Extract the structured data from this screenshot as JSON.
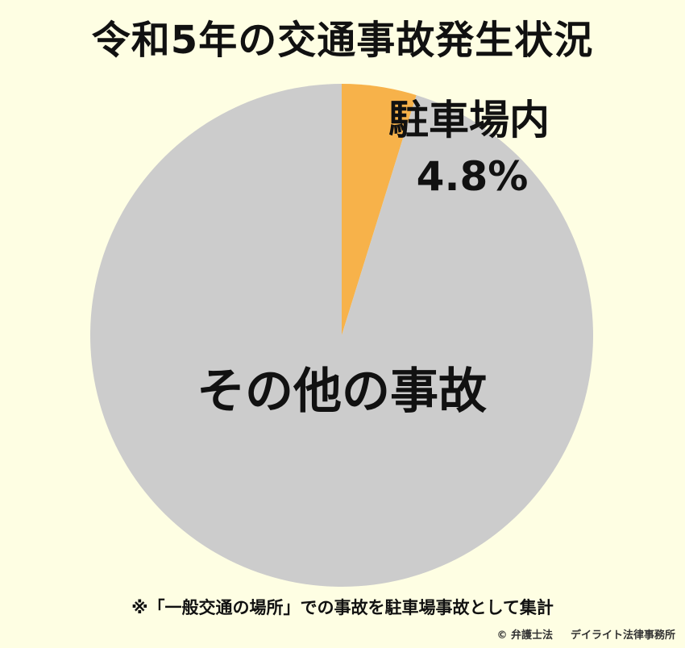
{
  "chart_data": {
    "type": "pie",
    "title": "令和5年の交通事故発生状況",
    "slices": [
      {
        "label": "駐車場内",
        "value": 4.8,
        "value_label": "4.8%",
        "color": "#f7b24a"
      },
      {
        "label": "その他の事故",
        "value": 95.2,
        "value_label": "",
        "color": "#cccccc"
      }
    ],
    "start_angle_deg": 0,
    "direction": "clockwise"
  },
  "note": "※「一般交通の場所」での事故を駐車場事故として集計",
  "credit": {
    "copyright": "© 弁護士法",
    "firm": "デイライト法律事務所"
  }
}
